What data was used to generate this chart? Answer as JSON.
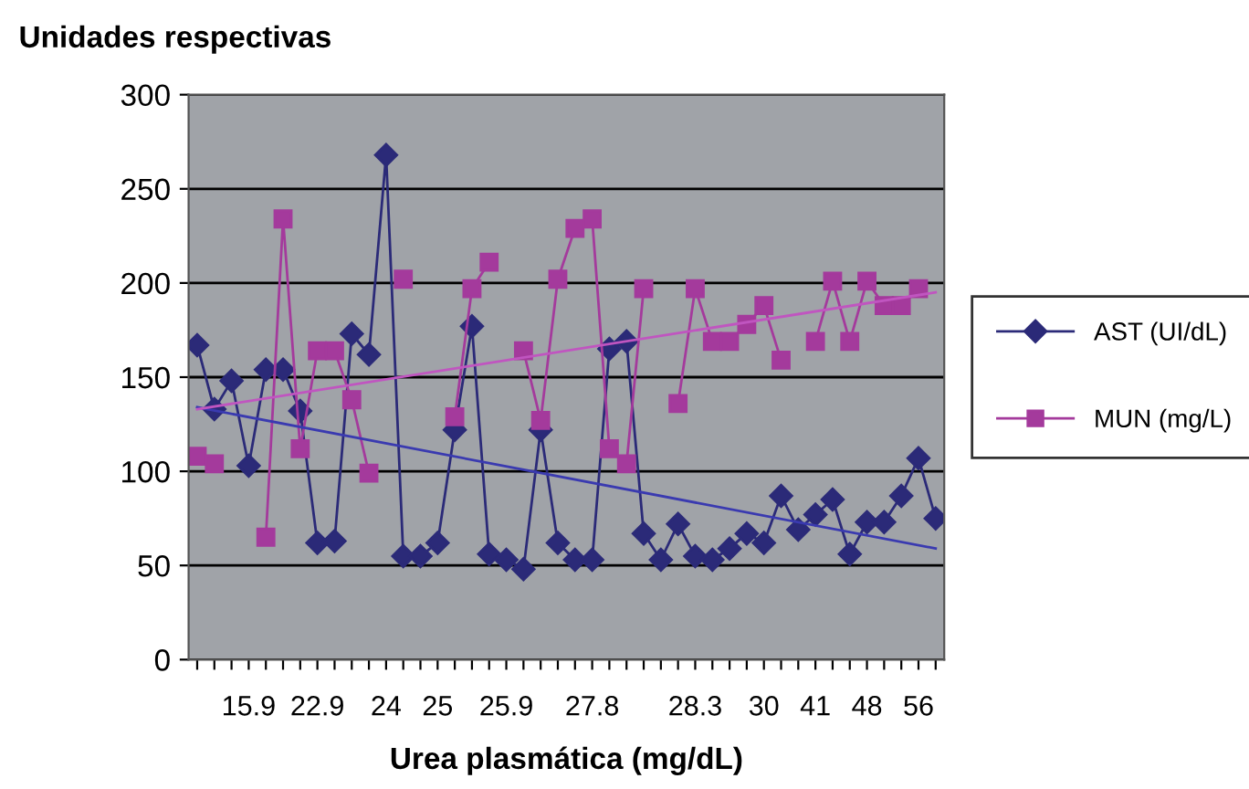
{
  "chart_data": {
    "type": "line",
    "ylabel": "Unidades respectivas",
    "xlabel": "Urea plasmática (mg/dL)",
    "categories": [
      null,
      null,
      null,
      "15.9",
      null,
      null,
      null,
      "22.9",
      null,
      null,
      null,
      "24",
      null,
      null,
      "25",
      null,
      null,
      null,
      "25.9",
      null,
      null,
      null,
      null,
      "27.8",
      null,
      null,
      null,
      null,
      null,
      "28.3",
      null,
      null,
      null,
      "30",
      null,
      null,
      "41",
      null,
      null,
      "48",
      null,
      null,
      "56",
      null
    ],
    "series": [
      {
        "name": "AST (UI/dL)",
        "color": "#2b2a78",
        "marker": "diamond",
        "values": [
          167,
          133,
          148,
          103,
          154,
          154,
          132,
          62,
          63,
          173,
          162,
          268,
          55,
          55,
          62,
          122,
          177,
          56,
          53,
          48,
          122,
          62,
          53,
          53,
          165,
          169,
          67,
          53,
          72,
          55,
          53,
          59,
          67,
          62,
          87,
          69,
          77,
          85,
          56,
          73,
          73,
          87,
          107,
          75
        ]
      },
      {
        "name": "MUN (mg/L)",
        "color": "#a43a9c",
        "marker": "square",
        "values": [
          108,
          104,
          null,
          null,
          65,
          234,
          112,
          164,
          164,
          138,
          99,
          null,
          202,
          null,
          null,
          129,
          197,
          211,
          null,
          164,
          127,
          202,
          229,
          234,
          112,
          104,
          197,
          null,
          136,
          197,
          169,
          169,
          178,
          188,
          159,
          null,
          169,
          201,
          169,
          201,
          188,
          188,
          197,
          null
        ]
      },
      {
        "color": "#3a3ab0",
        "marker": "none",
        "values": [
          134,
          null,
          null,
          null,
          null,
          null,
          null,
          null,
          null,
          null,
          null,
          null,
          null,
          null,
          null,
          null,
          null,
          null,
          null,
          null,
          null,
          null,
          null,
          null,
          null,
          null,
          null,
          null,
          null,
          null,
          null,
          null,
          null,
          null,
          null,
          null,
          null,
          null,
          null,
          null,
          null,
          null,
          null,
          59
        ]
      },
      {
        "color": "#c055c0",
        "marker": "none",
        "values": [
          133,
          null,
          null,
          null,
          null,
          null,
          null,
          null,
          null,
          null,
          null,
          null,
          null,
          null,
          null,
          null,
          null,
          null,
          null,
          null,
          null,
          null,
          null,
          null,
          null,
          null,
          null,
          null,
          null,
          null,
          null,
          null,
          null,
          null,
          null,
          null,
          null,
          null,
          null,
          null,
          null,
          null,
          null,
          195
        ]
      }
    ],
    "ylim": [
      0,
      300
    ],
    "yticks": [
      0,
      50,
      100,
      150,
      200,
      250,
      300
    ],
    "grid": "y",
    "legend": "right",
    "line_style": "solid"
  }
}
